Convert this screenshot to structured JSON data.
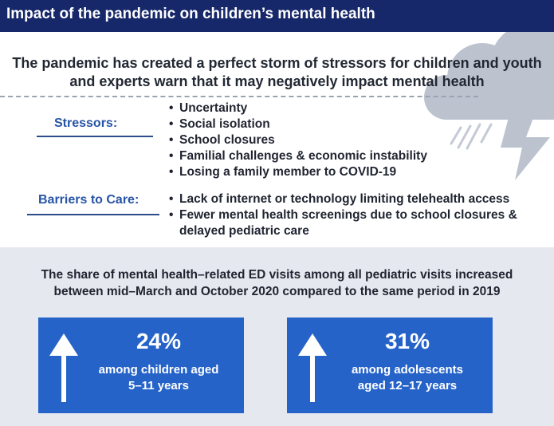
{
  "header": {
    "title": "Impact of the pandemic on children’s mental health"
  },
  "intro": {
    "line1": "The pandemic has created a perfect storm of stressors for children and youth",
    "line2": "and experts warn that it may negatively impact mental health"
  },
  "stressors": {
    "label": "Stressors:",
    "items": [
      "Uncertainty",
      "Social isolation",
      "School closures",
      "Familial challenges & economic instability",
      "Losing a family member to COVID-19"
    ]
  },
  "barriers": {
    "label": "Barriers to Care:",
    "items": [
      "Lack of internet or technology limiting telehealth access",
      "Fewer mental health screenings due to school closures &",
      "delayed pediatric care"
    ]
  },
  "stat": {
    "line1": "The share of mental health–related ED visits among all pediatric visits increased",
    "line2": "between mid–March and October 2020 compared to the same period in 2019"
  },
  "cards": [
    {
      "percent": "24%",
      "line1": "among children aged",
      "line2": "5–11 years"
    },
    {
      "percent": "31%",
      "line1": "among adolescents",
      "line2": "aged 12–17 years"
    }
  ],
  "colors": {
    "header": "#16276a",
    "label": "#2754a6",
    "card": "#2563c9",
    "lower_bg": "#e6e8ef",
    "cloud": "#bcc3cf"
  },
  "icons": [
    "storm-cloud-icon",
    "up-arrow-icon"
  ]
}
